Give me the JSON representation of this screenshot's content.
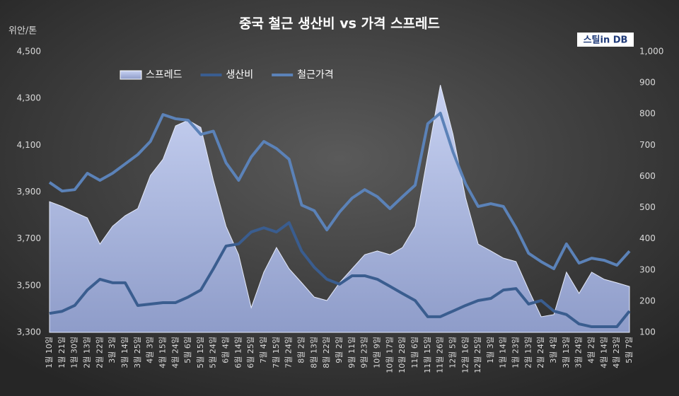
{
  "chart_data": {
    "type": "line",
    "title": "중국 철근 생산비 vs 가격 스프레드",
    "y_label": "위안/톤",
    "logo": "스틸in DB",
    "legend": "top-left",
    "categories": [
      "1월 10일",
      "1월 21일",
      "1월 30일",
      "2월 13일",
      "2월 22일",
      "3월 3일",
      "3월 14일",
      "3월 25일",
      "4월 3일",
      "4월 15일",
      "4월 24일",
      "5월 6일",
      "5월 15일",
      "5월 24일",
      "6월 4일",
      "6월 14일",
      "6월 25일",
      "7월 4일",
      "7월 15일",
      "7월 24일",
      "8월 2일",
      "8월 13일",
      "8월 22일",
      "9월 2일",
      "9월 11일",
      "9월 23일",
      "10월 9일",
      "10월 17일",
      "10월 28일",
      "11월 6일",
      "11월 15일",
      "11월 26일",
      "12월 5일",
      "12월 16일",
      "12월 25일",
      "1월 3일",
      "1월 14일",
      "1월 23일",
      "2월 13일",
      "2월 24일",
      "3월 4일",
      "3월 13일",
      "3월 24일",
      "4월 2일",
      "4월 14일",
      "4월 23일",
      "5월 7일"
    ],
    "series": [
      {
        "name": "스프레드",
        "kind": "area",
        "axis": "y2",
        "color": "#b4c0e6",
        "values": [
          519,
          504,
          485,
          467,
          383,
          440,
          474,
          497,
          603,
          655,
          762,
          780,
          757,
          587,
          440,
          349,
          179,
          293,
          372,
          304,
          259,
          213,
          202,
          259,
          304,
          349,
          361,
          349,
          372,
          440,
          667,
          893,
          735,
          531,
          383,
          361,
          338,
          327,
          236,
          150,
          157,
          293,
          225,
          293,
          270,
          259,
          247
        ]
      },
      {
        "name": "생산비",
        "kind": "line",
        "axis": "y",
        "color": "#3a5d8f",
        "values": [
          3381,
          3390,
          3415,
          3481,
          3527,
          3512,
          3512,
          3415,
          3421,
          3427,
          3427,
          3451,
          3481,
          3572,
          3669,
          3678,
          3729,
          3747,
          3729,
          3769,
          3647,
          3578,
          3527,
          3506,
          3542,
          3542,
          3527,
          3497,
          3466,
          3436,
          3367,
          3367,
          3391,
          3415,
          3436,
          3445,
          3481,
          3487,
          3421,
          3436,
          3391,
          3376,
          3336,
          3324,
          3324,
          3324,
          3391
        ]
      },
      {
        "name": "철근가격",
        "kind": "line",
        "axis": "y",
        "color": "#5b82b8",
        "values": [
          3941,
          3904,
          3910,
          3980,
          3950,
          3980,
          4020,
          4060,
          4116,
          4231,
          4213,
          4207,
          4146,
          4160,
          4025,
          3950,
          4050,
          4116,
          4086,
          4040,
          3844,
          3820,
          3738,
          3814,
          3874,
          3910,
          3880,
          3829,
          3880,
          3929,
          4192,
          4237,
          4071,
          3935,
          3838,
          3850,
          3838,
          3747,
          3638,
          3602,
          3572,
          3678,
          3596,
          3617,
          3608,
          3587,
          3647
        ]
      }
    ],
    "ylim": [
      3300,
      4500
    ],
    "yticks": [
      {
        "value": 3300,
        "label": "3,300"
      },
      {
        "value": 3500,
        "label": "3,500"
      },
      {
        "value": 3700,
        "label": "3,700"
      },
      {
        "value": 3900,
        "label": "3,900"
      },
      {
        "value": 4100,
        "label": "4,100"
      },
      {
        "value": 4300,
        "label": "4,300"
      },
      {
        "value": 4500,
        "label": "4,500"
      }
    ],
    "y2lim": [
      100,
      1000
    ],
    "y2ticks": [
      100,
      200,
      300,
      400,
      500,
      600,
      700,
      800,
      900,
      {
        "value": 1000,
        "label": "1,000"
      }
    ]
  }
}
